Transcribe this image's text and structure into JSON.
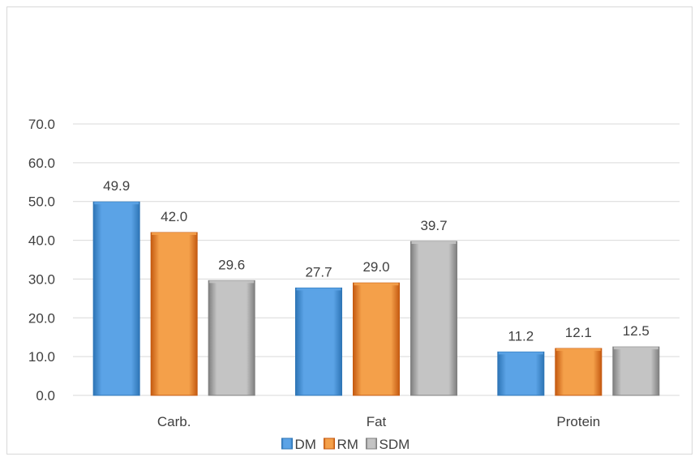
{
  "chart_data": {
    "type": "bar",
    "title": "",
    "xlabel": "",
    "ylabel": "",
    "categories": [
      "Carb.",
      "Fat",
      "Protein"
    ],
    "series": [
      {
        "name": "DM",
        "values": [
          49.9,
          27.7,
          11.2
        ],
        "color": "#2e75b6",
        "light": "#5ba3e6"
      },
      {
        "name": "RM",
        "values": [
          42.0,
          29.0,
          12.1
        ],
        "color": "#c55a11",
        "light": "#f4a04a"
      },
      {
        "name": "SDM",
        "values": [
          29.6,
          39.7,
          12.5
        ],
        "color": "#7f7f7f",
        "light": "#c4c4c4"
      }
    ],
    "ylim": [
      0,
      70
    ],
    "yticks": [
      "0.0",
      "10.0",
      "20.0",
      "30.0",
      "40.0",
      "50.0",
      "60.0",
      "70.0"
    ],
    "grid": true,
    "legend": "bottom",
    "data_labels": true
  }
}
